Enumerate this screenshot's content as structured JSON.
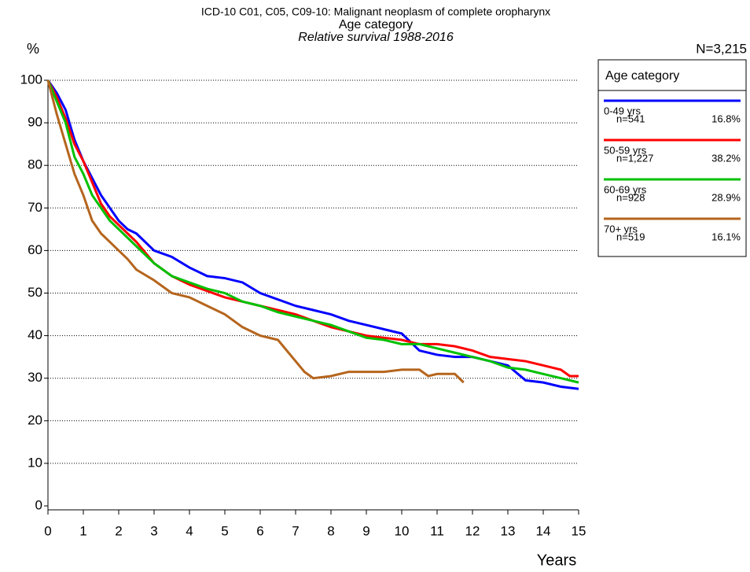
{
  "chart_data": {
    "type": "line",
    "title": "ICD-10 C01, C05, C09-10: Malignant neoplasm of complete oropharynx",
    "subtitle": "Age category",
    "subtitle2": "Relative survival 1988-2016",
    "y_label": "%",
    "x_label": "Years",
    "total": "N=3,215",
    "legend_title": "Age category",
    "xlim": [
      0,
      15
    ],
    "xticks": [
      0,
      1,
      2,
      3,
      4,
      5,
      6,
      7,
      8,
      9,
      10,
      11,
      12,
      13,
      14,
      15
    ],
    "ylim": [
      0,
      100
    ],
    "yticks": [
      0,
      10,
      20,
      30,
      40,
      50,
      60,
      70,
      80,
      90,
      100
    ],
    "grid": true,
    "series": [
      {
        "name": "0-49 yrs",
        "n": "n=541",
        "share": "16.8%",
        "color": "#0000ff",
        "x": [
          0,
          0.25,
          0.5,
          0.75,
          1,
          1.25,
          1.5,
          1.75,
          2,
          2.25,
          2.5,
          3,
          3.5,
          4,
          4.5,
          5,
          5.5,
          6,
          6.5,
          7,
          7.5,
          8,
          8.5,
          9,
          9.5,
          10,
          10.5,
          11,
          11.5,
          12,
          12.5,
          13,
          13.5,
          14,
          14.5,
          15
        ],
        "values": [
          100,
          97,
          93,
          86,
          81,
          77,
          73,
          70,
          67,
          65,
          64,
          60,
          58.5,
          56,
          54,
          53.5,
          52.5,
          50,
          48.5,
          47,
          46,
          45,
          43.5,
          42.5,
          41.5,
          40.5,
          36.5,
          35.5,
          35,
          35,
          34,
          33,
          29.5,
          29,
          28,
          27.5
        ]
      },
      {
        "name": "50-59 yrs",
        "n": "n=1,227",
        "share": "38.2%",
        "color": "#ff0000",
        "x": [
          0,
          0.25,
          0.5,
          0.75,
          1,
          1.25,
          1.5,
          1.75,
          2,
          2.25,
          2.5,
          3,
          3.5,
          4,
          4.5,
          5,
          5.5,
          6,
          6.5,
          7,
          7.5,
          8,
          8.5,
          9,
          9.5,
          10,
          10.5,
          11,
          11.5,
          12,
          12.5,
          13,
          13.5,
          14,
          14.5,
          14.75,
          15
        ],
        "values": [
          100,
          96,
          91,
          85,
          81,
          76,
          71,
          68,
          66,
          64,
          62,
          57,
          54,
          52,
          50.5,
          49,
          48,
          47,
          46,
          45,
          43.5,
          42,
          41,
          40,
          39.5,
          39,
          38,
          38,
          37.5,
          36.5,
          35,
          34.5,
          34,
          33,
          32,
          30.5,
          30.5
        ]
      },
      {
        "name": "60-69 yrs",
        "n": "n=928",
        "share": "28.9%",
        "color": "#00c000",
        "x": [
          0,
          0.25,
          0.5,
          0.75,
          1,
          1.25,
          1.5,
          1.75,
          2,
          2.25,
          2.5,
          3,
          3.5,
          4,
          4.5,
          5,
          5.5,
          6,
          6.5,
          7,
          7.5,
          8,
          8.5,
          9,
          9.5,
          10,
          10.5,
          11,
          11.5,
          12,
          12.5,
          13,
          13.5,
          14,
          14.5,
          15
        ],
        "values": [
          100,
          95,
          90,
          82,
          78,
          73,
          70,
          67,
          65,
          63,
          61,
          57,
          54,
          52.5,
          51,
          50,
          48,
          47,
          45.5,
          44.5,
          43.5,
          42.5,
          41,
          39.5,
          39,
          38,
          38,
          37,
          36,
          35,
          34,
          32.5,
          32,
          31,
          30,
          29
        ]
      },
      {
        "name": "70+ yrs",
        "n": "n=519",
        "share": "16.1%",
        "color": "#b5651d",
        "x": [
          0,
          0.25,
          0.5,
          0.75,
          1,
          1.25,
          1.5,
          1.75,
          2,
          2.25,
          2.5,
          3,
          3.5,
          4,
          4.5,
          5,
          5.5,
          6,
          6.5,
          7,
          7.25,
          7.5,
          8,
          8.5,
          9,
          9.5,
          10,
          10.5,
          10.75,
          11,
          11.5,
          11.75
        ],
        "values": [
          100,
          92,
          85,
          78,
          73,
          67,
          64,
          62,
          60,
          58,
          55.5,
          53,
          50,
          49,
          47,
          45,
          42,
          40,
          39,
          34,
          31.5,
          30,
          30.5,
          31.5,
          31.5,
          31.5,
          32,
          32,
          30.5,
          31,
          31,
          29
        ]
      }
    ]
  }
}
